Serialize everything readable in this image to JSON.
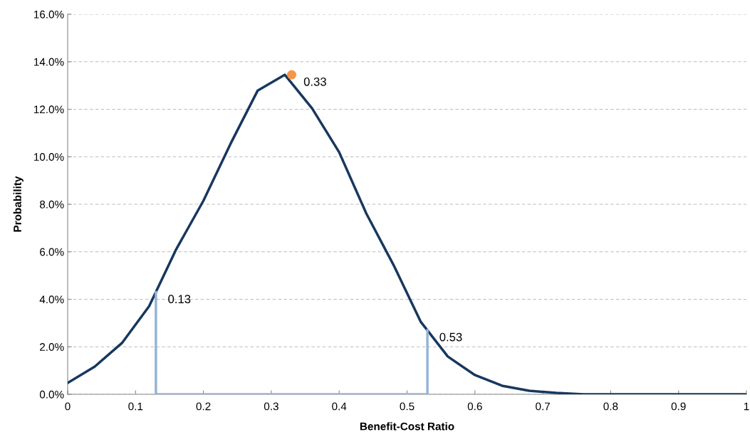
{
  "chart_data": {
    "type": "line",
    "xlabel": "Benefit-Cost Ratio",
    "ylabel": "Probability",
    "xlim": [
      0,
      1
    ],
    "xticks": [
      0,
      0.1,
      0.2,
      0.3,
      0.4,
      0.5,
      0.6,
      0.7,
      0.8,
      0.9,
      1
    ],
    "ylim": [
      0,
      16
    ],
    "yticks": [
      {
        "value": 0,
        "label": "0.0%"
      },
      {
        "value": 2,
        "label": "2.0%"
      },
      {
        "value": 4,
        "label": "4.0%"
      },
      {
        "value": 6,
        "label": "6.0%"
      },
      {
        "value": 8,
        "label": "8.0%"
      },
      {
        "value": 10,
        "label": "10.0%"
      },
      {
        "value": 12,
        "label": "12.0%"
      },
      {
        "value": 14,
        "label": "14.0%"
      },
      {
        "value": 16,
        "label": "16.0%"
      }
    ],
    "grid": "y",
    "legend": false,
    "series": [
      {
        "color": "#17375e",
        "marker": "none",
        "line_style": "solid",
        "x": [
          0,
          0.04,
          0.08,
          0.12,
          0.16,
          0.2,
          0.24,
          0.28,
          0.32,
          0.36,
          0.4,
          0.44,
          0.48,
          0.52,
          0.56,
          0.6,
          0.64,
          0.68,
          0.72,
          0.76,
          0.8,
          0.84,
          0.88,
          0.92,
          0.96,
          1
        ],
        "values": [
          0.48,
          1.17,
          2.16,
          3.71,
          6.11,
          8.15,
          10.55,
          12.79,
          13.45,
          12.04,
          10.19,
          7.61,
          5.45,
          3.06,
          1.59,
          0.81,
          0.36,
          0.15,
          0.06,
          0,
          0,
          0,
          0,
          0,
          0,
          0
        ]
      },
      {
        "color": "#95b3d7",
        "marker": "none",
        "line_style": "solid",
        "x": [
          0.13,
          0.13,
          0.53,
          0.53
        ],
        "values": [
          4.3,
          0,
          0,
          2.7
        ]
      },
      {
        "type": "scatter",
        "color": "#f79646",
        "marker": "circle",
        "x": [
          0.33
        ],
        "values": [
          13.45
        ]
      }
    ],
    "annotations": [
      {
        "text": "0.13",
        "x": 0.13,
        "y": 4.3
      },
      {
        "text": "0.53",
        "x": 0.53,
        "y": 2.7
      },
      {
        "text": "0.33",
        "x": 0.33,
        "y": 13.45
      }
    ]
  }
}
